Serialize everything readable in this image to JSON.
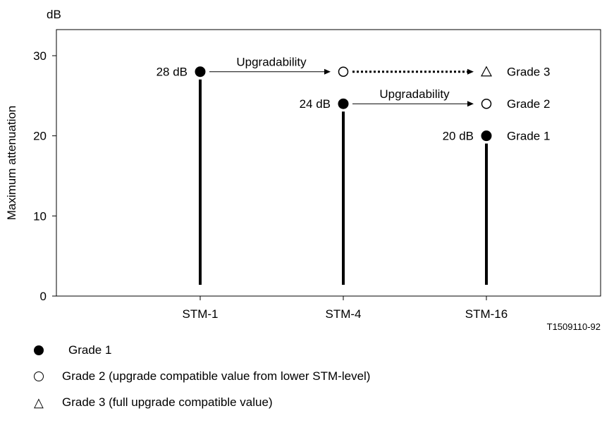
{
  "chart_data": {
    "type": "scatter",
    "unit_label": "dB",
    "ylabel": "Maximum attenuation",
    "xlabel": "",
    "ylim": [
      0,
      30
    ],
    "yticks": [
      0,
      10,
      20,
      30
    ],
    "categories": [
      "STM-1",
      "STM-4",
      "STM-16"
    ],
    "reference": "T1509110-92",
    "grades": [
      {
        "name": "Grade 1",
        "symbol": "filled-circle"
      },
      {
        "name": "Grade 2",
        "symbol": "open-circle"
      },
      {
        "name": "Grade 3",
        "symbol": "open-triangle"
      }
    ],
    "points": [
      {
        "category": "STM-1",
        "value": 28,
        "grade": "Grade 1",
        "symbol": "filled-circle",
        "label": "28 dB",
        "stem": true
      },
      {
        "category": "STM-4",
        "value": 28,
        "grade": "Grade 2",
        "symbol": "open-circle",
        "label": "",
        "stem": false
      },
      {
        "category": "STM-16",
        "value": 28,
        "grade": "Grade 3",
        "symbol": "open-triangle",
        "label": "Grade 3",
        "stem": false
      },
      {
        "category": "STM-4",
        "value": 24,
        "grade": "Grade 1",
        "symbol": "filled-circle",
        "label": "24 dB",
        "stem": true
      },
      {
        "category": "STM-16",
        "value": 24,
        "grade": "Grade 2",
        "symbol": "open-circle",
        "label": "Grade 2",
        "stem": false
      },
      {
        "category": "STM-16",
        "value": 20,
        "grade": "Grade 1",
        "symbol": "filled-circle",
        "label": "20 dB",
        "stem": true,
        "side_label": "Grade 1"
      }
    ],
    "annotations": [
      {
        "from": "STM-1",
        "to": "STM-4",
        "value": 28,
        "text": "Upgradability",
        "style": "solid"
      },
      {
        "from": "STM-4",
        "to": "STM-16",
        "value": 28,
        "text": "",
        "style": "dotted"
      },
      {
        "from": "STM-4",
        "to": "STM-16",
        "value": 24,
        "text": "Upgradability",
        "style": "solid"
      }
    ]
  },
  "legend": [
    {
      "symbol": "filled-circle",
      "text": "Grade 1"
    },
    {
      "symbol": "open-circle",
      "text": "Grade 2 (upgrade compatible value from lower STM-level)"
    },
    {
      "symbol": "open-triangle",
      "text": "Grade 3 (full upgrade compatible value)"
    }
  ]
}
